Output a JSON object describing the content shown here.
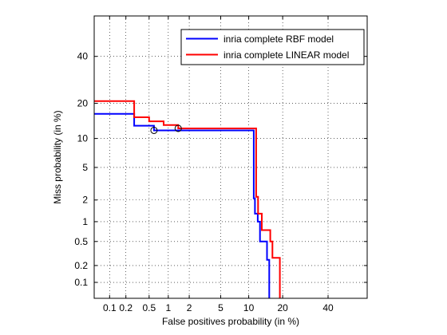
{
  "chart_data": {
    "type": "line",
    "title": "",
    "xlabel": "False positives probability (in %)",
    "ylabel": "Miss probability (in %)",
    "xscale": "probit",
    "yscale": "probit",
    "xlim": [
      0.05,
      60
    ],
    "ylim": [
      0.05,
      60
    ],
    "xticks": [
      0.1,
      0.2,
      0.5,
      1,
      2,
      5,
      10,
      20,
      40
    ],
    "xtick_labels": [
      "0.1",
      "0.2",
      "0.5",
      "1",
      "2",
      "5",
      "10",
      "20",
      "40"
    ],
    "yticks": [
      0.1,
      0.2,
      0.5,
      1,
      2,
      5,
      10,
      20,
      40
    ],
    "ytick_labels": [
      "0.1",
      "0.2",
      "0.5",
      "1",
      "2",
      "5",
      "10",
      "20",
      "40"
    ],
    "grid": true,
    "legend_location": "top-right",
    "series": [
      {
        "name": "inria complete RBF model",
        "color": "#0000ff",
        "step_points": [
          [
            0.05,
            16.5
          ],
          [
            0.28,
            16.5
          ],
          [
            0.28,
            13.1
          ],
          [
            0.6,
            13.1
          ],
          [
            0.6,
            11.9
          ],
          [
            11.2,
            11.9
          ],
          [
            11.2,
            2.1
          ],
          [
            11.5,
            2.1
          ],
          [
            11.5,
            1.3
          ],
          [
            12.2,
            1.3
          ],
          [
            12.2,
            1.0
          ],
          [
            12.8,
            1.0
          ],
          [
            12.8,
            0.5
          ],
          [
            14.8,
            0.5
          ],
          [
            14.8,
            0.25
          ],
          [
            15.5,
            0.25
          ],
          [
            15.5,
            0.05
          ]
        ],
        "marker": [
          0.6,
          11.9
        ]
      },
      {
        "name": "inria complete LINEAR model",
        "color": "#ff0000",
        "step_points": [
          [
            0.05,
            20.8
          ],
          [
            0.28,
            20.8
          ],
          [
            0.28,
            15.5
          ],
          [
            0.5,
            15.5
          ],
          [
            0.5,
            14.3
          ],
          [
            0.85,
            14.3
          ],
          [
            0.85,
            13.3
          ],
          [
            1.4,
            13.3
          ],
          [
            1.4,
            12.4
          ],
          [
            11.8,
            12.4
          ],
          [
            11.8,
            2.2
          ],
          [
            12.3,
            2.2
          ],
          [
            12.3,
            1.3
          ],
          [
            13.3,
            1.3
          ],
          [
            13.3,
            0.75
          ],
          [
            15.8,
            0.75
          ],
          [
            15.8,
            0.5
          ],
          [
            16.5,
            0.5
          ],
          [
            16.5,
            0.27
          ],
          [
            19.0,
            0.27
          ],
          [
            19.0,
            0.05
          ]
        ],
        "marker": [
          1.4,
          12.4
        ]
      }
    ]
  }
}
